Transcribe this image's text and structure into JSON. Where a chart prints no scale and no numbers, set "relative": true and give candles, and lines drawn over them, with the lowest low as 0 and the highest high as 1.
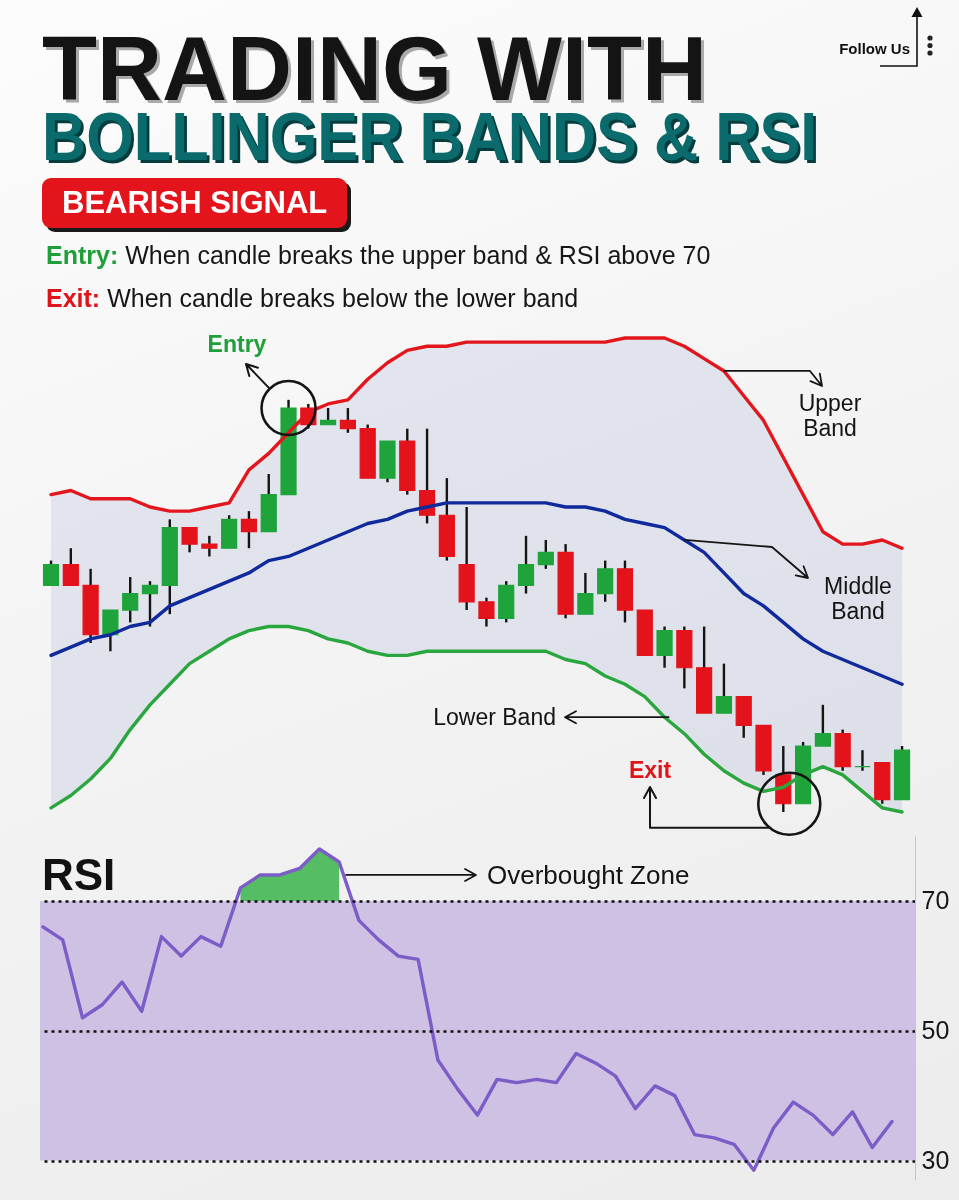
{
  "chart_data": [
    {
      "type": "candlestick",
      "title": "TRADING WITH\nBOLLINGER BANDS & RSI",
      "subtitle": "BEARISH SIGNAL",
      "annotations": [
        "Entry: When candle breaks the upper band & RSI above 70",
        "Exit: When candle breaks below the lower band",
        "Entry",
        "Exit",
        "Follow Us"
      ],
      "relative": true,
      "categories": [
        null,
        null,
        null,
        null,
        null,
        null,
        null,
        null,
        null,
        null,
        null,
        null,
        null,
        null,
        null,
        null,
        null,
        null,
        null,
        null,
        null,
        null,
        null,
        null,
        null,
        null,
        null,
        null,
        null,
        null,
        null,
        null,
        null,
        null,
        null,
        null,
        null,
        null,
        null,
        null,
        null,
        null,
        null,
        null
      ],
      "ohlc": [
        [
          0.55,
          0.61,
          0.55,
          0.6
        ],
        [
          0.6,
          0.64,
          0.55,
          0.55
        ],
        [
          0.55,
          0.59,
          0.41,
          0.43
        ],
        [
          0.43,
          0.49,
          0.39,
          0.49
        ],
        [
          0.49,
          0.57,
          0.46,
          0.53
        ],
        [
          0.53,
          0.56,
          0.45,
          0.55
        ],
        [
          0.55,
          0.71,
          0.48,
          0.69
        ],
        [
          0.69,
          0.69,
          0.63,
          0.65
        ],
        [
          0.65,
          0.67,
          0.62,
          0.64
        ],
        [
          0.64,
          0.72,
          0.64,
          0.71
        ],
        [
          0.71,
          0.73,
          0.64,
          0.68
        ],
        [
          0.68,
          0.82,
          0.68,
          0.77
        ],
        [
          0.77,
          1.0,
          0.77,
          0.98
        ],
        [
          0.98,
          0.99,
          0.93,
          0.94
        ],
        [
          0.94,
          0.98,
          0.94,
          0.95
        ],
        [
          0.95,
          0.98,
          0.92,
          0.93
        ],
        [
          0.93,
          0.94,
          0.81,
          0.81
        ],
        [
          0.81,
          0.9,
          0.8,
          0.9
        ],
        [
          0.9,
          0.93,
          0.77,
          0.78
        ],
        [
          0.78,
          0.93,
          0.7,
          0.72
        ],
        [
          0.72,
          0.81,
          0.61,
          0.62
        ],
        [
          0.6,
          0.74,
          0.49,
          0.51
        ],
        [
          0.51,
          0.52,
          0.45,
          0.47
        ],
        [
          0.47,
          0.56,
          0.46,
          0.55
        ],
        [
          0.55,
          0.67,
          0.53,
          0.6
        ],
        [
          0.6,
          0.66,
          0.59,
          0.63
        ],
        [
          0.63,
          0.65,
          0.47,
          0.48
        ],
        [
          0.48,
          0.58,
          0.48,
          0.53
        ],
        [
          0.53,
          0.61,
          0.51,
          0.59
        ],
        [
          0.59,
          0.61,
          0.46,
          0.49
        ],
        [
          0.49,
          0.49,
          0.38,
          0.38
        ],
        [
          0.38,
          0.45,
          0.35,
          0.44
        ],
        [
          0.44,
          0.45,
          0.3,
          0.35
        ],
        [
          0.35,
          0.45,
          0.24,
          0.24
        ],
        [
          0.24,
          0.36,
          0.24,
          0.28
        ],
        [
          0.28,
          0.28,
          0.18,
          0.21
        ],
        [
          0.21,
          0.21,
          0.09,
          0.1
        ],
        [
          0.09,
          0.16,
          0.0,
          0.02
        ],
        [
          0.02,
          0.17,
          0.02,
          0.16
        ],
        [
          0.16,
          0.26,
          0.16,
          0.19
        ],
        [
          0.19,
          0.2,
          0.1,
          0.11
        ],
        [
          0.11,
          0.15,
          0.1,
          0.11
        ],
        [
          0.12,
          0.12,
          0.02,
          0.03
        ],
        [
          0.03,
          0.16,
          0.03,
          0.15
        ]
      ],
      "colors": [
        "#1fa33b",
        "#e4121a",
        "#e4121a",
        "#1fa33b",
        "#1fa33b",
        "#1fa33b",
        "#1fa33b",
        "#e4121a",
        "#e4121a",
        "#1fa33b",
        "#e4121a",
        "#1fa33b",
        "#1fa33b",
        "#e4121a",
        "#1fa33b",
        "#e4121a",
        "#e4121a",
        "#1fa33b",
        "#e4121a",
        "#e4121a",
        "#e4121a",
        "#e4121a",
        "#e4121a",
        "#1fa33b",
        "#1fa33b",
        "#1fa33b",
        "#e4121a",
        "#1fa33b",
        "#1fa33b",
        "#e4121a",
        "#e4121a",
        "#1fa33b",
        "#e4121a",
        "#e4121a",
        "#1fa33b",
        "#e4121a",
        "#e4121a",
        "#e4121a",
        "#1fa33b",
        "#1fa33b",
        "#e4121a",
        "#1fa33b",
        "#e4121a",
        "#1fa33b"
      ],
      "series": [
        {
          "name": "Upper Band",
          "type": "line",
          "color": "#e2161c",
          "values": [
            0.77,
            0.78,
            0.76,
            0.76,
            0.76,
            0.74,
            0.73,
            0.73,
            0.74,
            0.75,
            0.83,
            0.87,
            0.92,
            0.97,
            0.99,
            1.0,
            1.05,
            1.09,
            1.12,
            1.13,
            1.13,
            1.14,
            1.14,
            1.14,
            1.14,
            1.14,
            1.14,
            1.14,
            1.14,
            1.15,
            1.15,
            1.15,
            1.13,
            1.1,
            1.07,
            1.01,
            0.95,
            0.86,
            0.77,
            0.68,
            0.65,
            0.65,
            0.66,
            0.64
          ]
        },
        {
          "name": "Middle Band",
          "type": "line",
          "color": "#10299b",
          "values": [
            0.38,
            0.4,
            0.42,
            0.43,
            0.45,
            0.46,
            0.5,
            0.52,
            0.54,
            0.56,
            0.58,
            0.61,
            0.62,
            0.64,
            0.66,
            0.68,
            0.7,
            0.71,
            0.73,
            0.74,
            0.75,
            0.75,
            0.75,
            0.75,
            0.75,
            0.75,
            0.74,
            0.74,
            0.73,
            0.71,
            0.7,
            0.69,
            0.66,
            0.63,
            0.58,
            0.53,
            0.5,
            0.46,
            0.42,
            0.39,
            0.37,
            0.35,
            0.33,
            0.31
          ],
          "lower": [
            0.01,
            0.04,
            0.08,
            0.13,
            0.2,
            0.26,
            0.31,
            0.36,
            0.39,
            0.42,
            0.44,
            0.45,
            0.45,
            0.44,
            0.42,
            0.41,
            0.39,
            0.38,
            0.38,
            0.39,
            0.39,
            0.39,
            0.39,
            0.39,
            0.39,
            0.39,
            0.37,
            0.36,
            0.33,
            0.31,
            0.28,
            0.23,
            0.19,
            0.14,
            0.1,
            0.07,
            0.05,
            0.06,
            0.09,
            0.11,
            0.09,
            0.05,
            0.01,
            0.0
          ],
          "upper": [
            0.77,
            0.78,
            0.76,
            0.76,
            0.76,
            0.74,
            0.73,
            0.73,
            0.74,
            0.75,
            0.83,
            0.87,
            0.92,
            0.97,
            0.99,
            1.0,
            1.05,
            1.09,
            1.12,
            1.13,
            1.13,
            1.14,
            1.14,
            1.14,
            1.14,
            1.14,
            1.14,
            1.14,
            1.14,
            1.15,
            1.15,
            1.15,
            1.13,
            1.1,
            1.07,
            1.01,
            0.95,
            0.86,
            0.77,
            0.68,
            0.65,
            0.65,
            0.66,
            0.64
          ]
        },
        {
          "name": "Lower Band",
          "type": "line",
          "color": "#2aa63e",
          "values": [
            0.01,
            0.04,
            0.08,
            0.13,
            0.2,
            0.26,
            0.31,
            0.36,
            0.39,
            0.42,
            0.44,
            0.45,
            0.45,
            0.44,
            0.42,
            0.41,
            0.39,
            0.38,
            0.38,
            0.39,
            0.39,
            0.39,
            0.39,
            0.39,
            0.39,
            0.39,
            0.37,
            0.36,
            0.33,
            0.31,
            0.28,
            0.23,
            0.19,
            0.14,
            0.1,
            0.07,
            0.05,
            0.06,
            0.09,
            0.11,
            0.09,
            0.05,
            0.01,
            0.0
          ]
        }
      ]
    },
    {
      "type": "line",
      "title": "RSI",
      "annotations": [
        "Overbought Zone"
      ],
      "categories": [
        null,
        null,
        null,
        null,
        null,
        null,
        null,
        null,
        null,
        null,
        null,
        null,
        null,
        null,
        null,
        null,
        null,
        null,
        null,
        null,
        null,
        null,
        null,
        null,
        null,
        null,
        null,
        null,
        null,
        null,
        null,
        null,
        null,
        null,
        null,
        null,
        null,
        null,
        null,
        null,
        null,
        null,
        null,
        null
      ],
      "ylim": [
        27,
        80
      ],
      "yticks": [
        30,
        50,
        70
      ],
      "grid": "y",
      "bands": [
        {
          "axis": "y",
          "from": 30,
          "to": 70,
          "color": "#cec1e3"
        }
      ],
      "series": [
        {
          "color": "#7c5cc7",
          "values": [
            66,
            64,
            52,
            54,
            57.5,
            53,
            64.5,
            61.5,
            64.5,
            63,
            72,
            74,
            74,
            75,
            78,
            76,
            67,
            64,
            61.5,
            61,
            45.5,
            41,
            37,
            42.5,
            42,
            42.5,
            42,
            46.5,
            45,
            43,
            38,
            41.5,
            40,
            34,
            33.5,
            32.5,
            28.5,
            35,
            39,
            37,
            34,
            37.5,
            32,
            36
          ]
        },
        {
          "color": "#3ab54b",
          "values": [
            null,
            null,
            null,
            null,
            null,
            null,
            null,
            null,
            null,
            null,
            null,
            null,
            null,
            null,
            null,
            null,
            null,
            null,
            null,
            null,
            null,
            null,
            null,
            null,
            null,
            null,
            null,
            null,
            null,
            null,
            null,
            null,
            null,
            null,
            null,
            null,
            null,
            null,
            null,
            null,
            null,
            null,
            null,
            null
          ],
          "lower": [
            null,
            null,
            null,
            null,
            null,
            null,
            null,
            null,
            null,
            null,
            70,
            70,
            70,
            70,
            70,
            70,
            null,
            null,
            null,
            null,
            null,
            null,
            null,
            null,
            null,
            null,
            null,
            null,
            null,
            null,
            null,
            null,
            null,
            null,
            null,
            null,
            null,
            null,
            null,
            null,
            null,
            null,
            null,
            null
          ],
          "upper": [
            null,
            null,
            null,
            null,
            null,
            null,
            null,
            null,
            null,
            null,
            72,
            74,
            74,
            75,
            78,
            76,
            null,
            null,
            null,
            null,
            null,
            null,
            null,
            null,
            null,
            null,
            null,
            null,
            null,
            null,
            null,
            null,
            null,
            null,
            null,
            null,
            null,
            null,
            null,
            null,
            null,
            null,
            null,
            null
          ]
        }
      ]
    }
  ]
}
